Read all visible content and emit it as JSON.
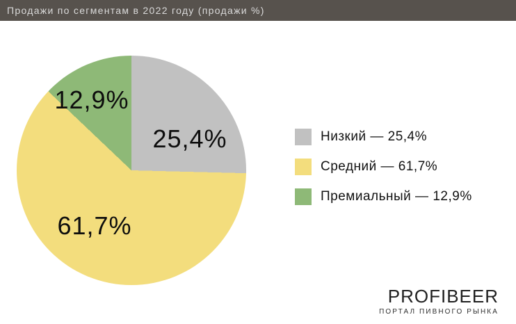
{
  "title_bar": {
    "text": "Продажи по сегментам в 2022 году (продажи %)"
  },
  "chart_data": {
    "type": "pie",
    "title": "Продажи по сегментам в 2022 году (продажи %)",
    "unit": "%",
    "start_angle_deg": 0,
    "direction": "clockwise",
    "segments": [
      {
        "label": "Низкий",
        "value": 25.4,
        "display_value": "25,4%",
        "color": "#c1c1c1"
      },
      {
        "label": "Средний",
        "value": 61.7,
        "display_value": "61,7%",
        "color": "#f3dd7d"
      },
      {
        "label": "Премиальный",
        "value": 12.9,
        "display_value": "12,9%",
        "color": "#8eb977"
      }
    ],
    "legend_position": "right"
  },
  "legend": {
    "items": [
      {
        "text": "Низкий — 25,4%",
        "color": "#c1c1c1"
      },
      {
        "text": "Средний — 61,7%",
        "color": "#f3dd7d"
      },
      {
        "text": "Премиальный — 12,9%",
        "color": "#8eb977"
      }
    ]
  },
  "footer": {
    "brand": "PROFIBEER",
    "tagline": "ПОРТАЛ ПИВНОГО РЫНКА"
  },
  "colors": {
    "background": "#ffffff",
    "title_bar_bg": "#57524d",
    "title_bar_text": "#dadada",
    "label_text": "#0d0d0d"
  }
}
